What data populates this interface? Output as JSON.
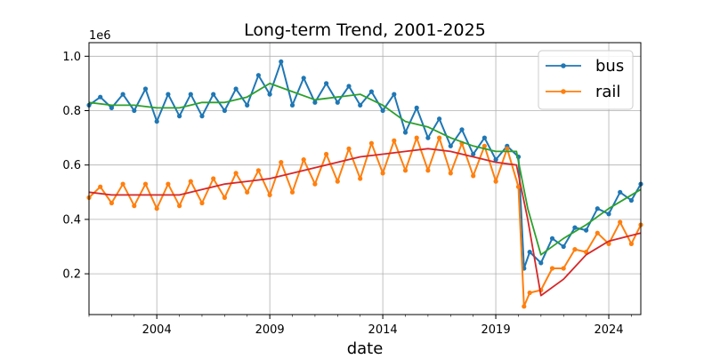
{
  "chart_data": {
    "type": "line",
    "title": "Long-term Trend, 2001-2025",
    "xlabel": "date",
    "ylabel": "",
    "y_offset_text": "1e6",
    "xlim": [
      "2001-01",
      "2025-06"
    ],
    "ylim": [
      0.05,
      1.05
    ],
    "x_ticks": [
      "2004",
      "2009",
      "2014",
      "2019",
      "2024"
    ],
    "y_ticks": [
      "0.2",
      "0.4",
      "0.6",
      "0.8",
      "1.0"
    ],
    "grid": true,
    "legend": "top-right",
    "colors": {
      "bus": "#1f77b4",
      "rail": "#ff7f0e",
      "bus_trend": "#2ca02c",
      "rail_trend": "#d62728"
    },
    "series": [
      {
        "name": "bus",
        "role": "monthly",
        "x": [
          "2001-01",
          "2001-07",
          "2002-01",
          "2002-07",
          "2003-01",
          "2003-07",
          "2004-01",
          "2004-07",
          "2005-01",
          "2005-07",
          "2006-01",
          "2006-07",
          "2007-01",
          "2007-07",
          "2008-01",
          "2008-07",
          "2009-01",
          "2009-07",
          "2010-01",
          "2010-07",
          "2011-01",
          "2011-07",
          "2012-01",
          "2012-07",
          "2013-01",
          "2013-07",
          "2014-01",
          "2014-07",
          "2015-01",
          "2015-07",
          "2016-01",
          "2016-07",
          "2017-01",
          "2017-07",
          "2018-01",
          "2018-07",
          "2019-01",
          "2019-07",
          "2020-01",
          "2020-04",
          "2020-07",
          "2021-01",
          "2021-07",
          "2022-01",
          "2022-07",
          "2023-01",
          "2023-07",
          "2024-01",
          "2024-07",
          "2025-01",
          "2025-06"
        ],
        "values": [
          0.82,
          0.85,
          0.81,
          0.86,
          0.8,
          0.88,
          0.76,
          0.86,
          0.78,
          0.86,
          0.78,
          0.86,
          0.8,
          0.88,
          0.82,
          0.93,
          0.86,
          0.98,
          0.82,
          0.92,
          0.83,
          0.9,
          0.83,
          0.89,
          0.82,
          0.87,
          0.8,
          0.86,
          0.72,
          0.81,
          0.7,
          0.77,
          0.67,
          0.73,
          0.64,
          0.7,
          0.62,
          0.67,
          0.63,
          0.22,
          0.28,
          0.24,
          0.33,
          0.3,
          0.37,
          0.36,
          0.44,
          0.42,
          0.5,
          0.47,
          0.53
        ]
      },
      {
        "name": "rail",
        "role": "monthly",
        "x": [
          "2001-01",
          "2001-07",
          "2002-01",
          "2002-07",
          "2003-01",
          "2003-07",
          "2004-01",
          "2004-07",
          "2005-01",
          "2005-07",
          "2006-01",
          "2006-07",
          "2007-01",
          "2007-07",
          "2008-01",
          "2008-07",
          "2009-01",
          "2009-07",
          "2010-01",
          "2010-07",
          "2011-01",
          "2011-07",
          "2012-01",
          "2012-07",
          "2013-01",
          "2013-07",
          "2014-01",
          "2014-07",
          "2015-01",
          "2015-07",
          "2016-01",
          "2016-07",
          "2017-01",
          "2017-07",
          "2018-01",
          "2018-07",
          "2019-01",
          "2019-07",
          "2020-01",
          "2020-04",
          "2020-07",
          "2021-01",
          "2021-07",
          "2022-01",
          "2022-07",
          "2023-01",
          "2023-07",
          "2024-01",
          "2024-07",
          "2025-01",
          "2025-06"
        ],
        "values": [
          0.48,
          0.52,
          0.46,
          0.53,
          0.45,
          0.53,
          0.44,
          0.53,
          0.45,
          0.54,
          0.46,
          0.55,
          0.48,
          0.57,
          0.5,
          0.58,
          0.49,
          0.61,
          0.5,
          0.62,
          0.53,
          0.64,
          0.54,
          0.66,
          0.55,
          0.68,
          0.57,
          0.69,
          0.58,
          0.7,
          0.58,
          0.7,
          0.57,
          0.68,
          0.56,
          0.67,
          0.54,
          0.66,
          0.52,
          0.08,
          0.13,
          0.14,
          0.22,
          0.22,
          0.29,
          0.28,
          0.35,
          0.31,
          0.39,
          0.31,
          0.38
        ]
      },
      {
        "name": "",
        "role": "bus-trend",
        "x": [
          "2001-01",
          "2002-01",
          "2003-01",
          "2004-01",
          "2005-01",
          "2006-01",
          "2007-01",
          "2008-01",
          "2009-01",
          "2010-01",
          "2011-01",
          "2012-01",
          "2013-01",
          "2014-01",
          "2015-01",
          "2016-01",
          "2017-01",
          "2018-01",
          "2019-01",
          "2019-12",
          "2020-06",
          "2021-01",
          "2022-01",
          "2023-01",
          "2024-01",
          "2025-06"
        ],
        "values": [
          0.83,
          0.82,
          0.82,
          0.81,
          0.81,
          0.83,
          0.83,
          0.85,
          0.9,
          0.87,
          0.84,
          0.85,
          0.86,
          0.82,
          0.76,
          0.74,
          0.7,
          0.67,
          0.65,
          0.65,
          0.44,
          0.27,
          0.33,
          0.38,
          0.44,
          0.51
        ]
      },
      {
        "name": "",
        "role": "rail-trend",
        "x": [
          "2001-01",
          "2002-01",
          "2003-01",
          "2004-01",
          "2005-01",
          "2006-01",
          "2007-01",
          "2008-01",
          "2009-01",
          "2010-01",
          "2011-01",
          "2012-01",
          "2013-01",
          "2014-01",
          "2015-01",
          "2016-01",
          "2017-01",
          "2018-01",
          "2019-01",
          "2019-12",
          "2020-06",
          "2021-01",
          "2022-01",
          "2023-01",
          "2024-01",
          "2025-06"
        ],
        "values": [
          0.5,
          0.49,
          0.49,
          0.49,
          0.49,
          0.51,
          0.53,
          0.54,
          0.55,
          0.57,
          0.59,
          0.61,
          0.63,
          0.64,
          0.65,
          0.66,
          0.65,
          0.63,
          0.61,
          0.6,
          0.4,
          0.12,
          0.18,
          0.27,
          0.32,
          0.35
        ]
      }
    ]
  }
}
